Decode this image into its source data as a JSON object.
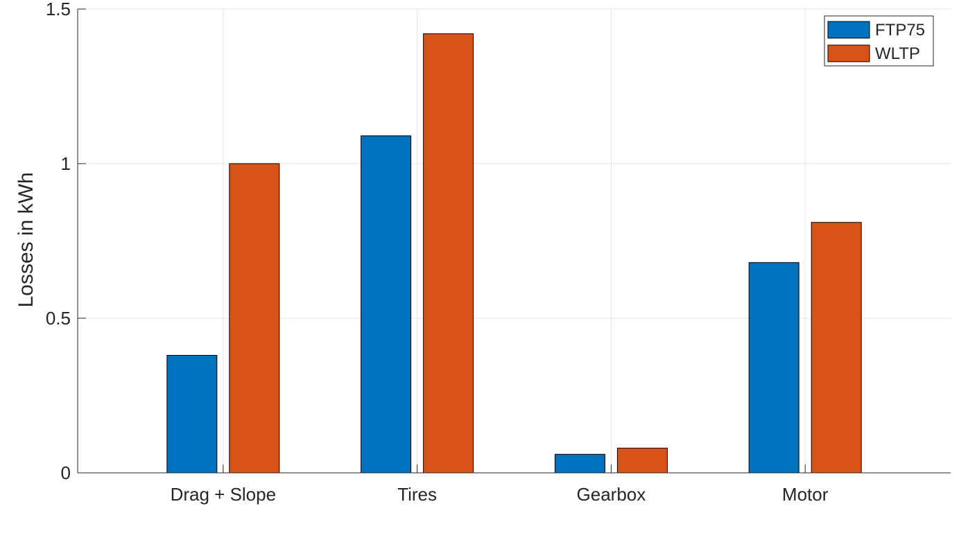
{
  "chart_data": {
    "type": "bar",
    "title": "",
    "xlabel": "",
    "ylabel": "Losses in kWh",
    "categories": [
      "Drag + Slope",
      "Tires",
      "Gearbox",
      "Motor"
    ],
    "series": [
      {
        "name": "FTP75",
        "color": "#0072BD",
        "values": [
          0.38,
          1.09,
          0.06,
          0.68
        ]
      },
      {
        "name": "WLTP",
        "color": "#D95319",
        "values": [
          1.0,
          1.42,
          0.08,
          0.81
        ]
      }
    ],
    "ylim": [
      0,
      1.5
    ],
    "yticks": [
      0,
      0.5,
      1,
      1.5
    ],
    "ytick_labels": [
      "0",
      "0.5",
      "1",
      "1.5"
    ],
    "grid": true,
    "legend_position": "top-right"
  }
}
